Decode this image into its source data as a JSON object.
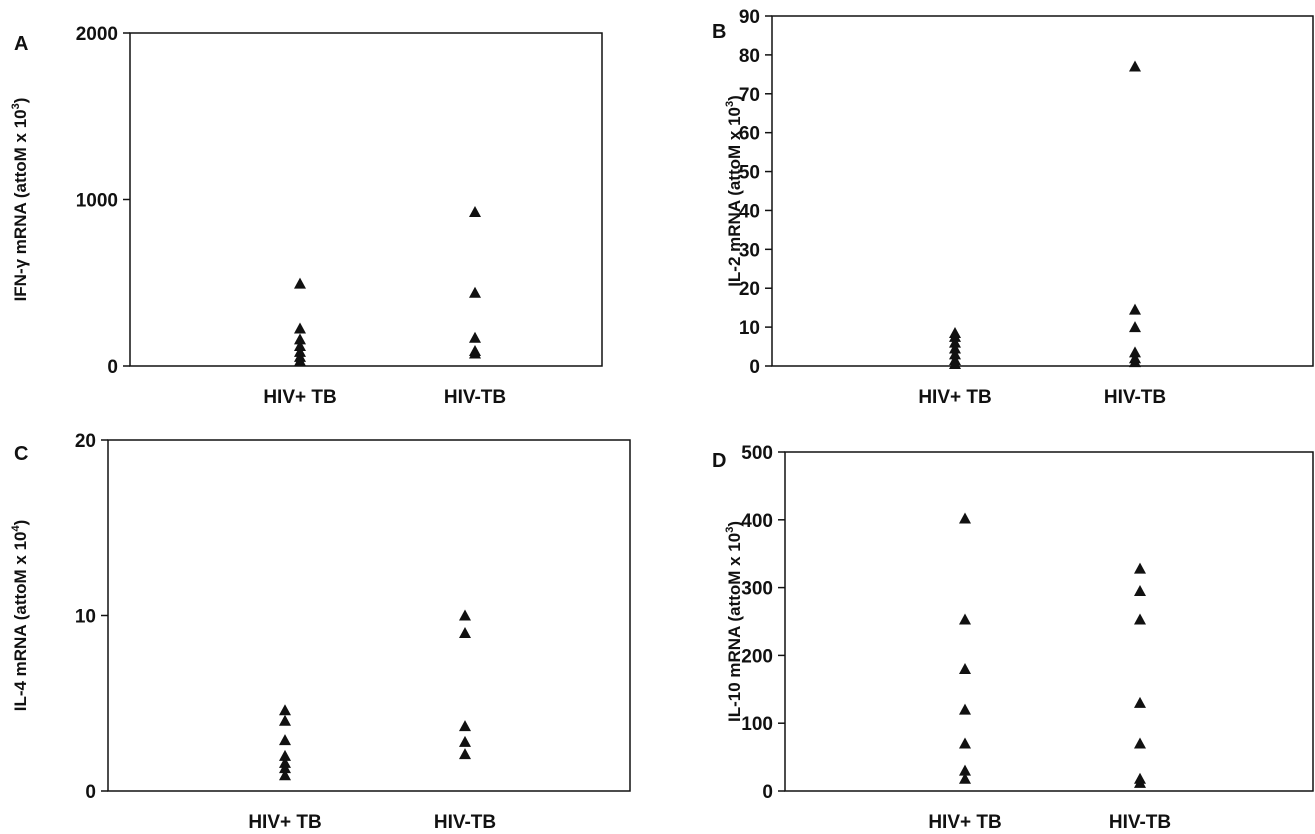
{
  "chart_data": [
    {
      "type": "scatter",
      "panel": "A",
      "ylabel": "IFN-γ mRNA (attoM x 10",
      "ylabel_sup": "3",
      "ylabel_suffix": ")",
      "ylim": [
        0,
        2000
      ],
      "yticks": [
        0,
        1000,
        2000
      ],
      "ytick_labels": [
        "0",
        "1000",
        "2000"
      ],
      "categories": [
        "HIV+ TB",
        "HIV-TB"
      ],
      "points": [
        {
          "x": "HIV+ TB",
          "y": 495
        },
        {
          "x": "HIV+ TB",
          "y": 225
        },
        {
          "x": "HIV+ TB",
          "y": 160
        },
        {
          "x": "HIV+ TB",
          "y": 120
        },
        {
          "x": "HIV+ TB",
          "y": 85
        },
        {
          "x": "HIV+ TB",
          "y": 55
        },
        {
          "x": "HIV+ TB",
          "y": 30
        },
        {
          "x": "HIV-TB",
          "y": 925
        },
        {
          "x": "HIV-TB",
          "y": 440
        },
        {
          "x": "HIV-TB",
          "y": 170
        },
        {
          "x": "HIV-TB",
          "y": 90
        },
        {
          "x": "HIV-TB",
          "y": 75
        }
      ],
      "marker": "triangle",
      "color": "#111111",
      "grid": false
    },
    {
      "type": "scatter",
      "panel": "B",
      "ylabel": "IL-2 mRNA (attoM x 10",
      "ylabel_sup": "3",
      "ylabel_suffix": ")",
      "ylim": [
        0,
        90
      ],
      "yticks": [
        0,
        10,
        20,
        30,
        40,
        50,
        60,
        70,
        80,
        90
      ],
      "ytick_labels": [
        "0",
        "10",
        "20",
        "30",
        "40",
        "50",
        "60",
        "70",
        "80",
        "90"
      ],
      "categories": [
        "HIV+ TB",
        "HIV-TB"
      ],
      "points": [
        {
          "x": "HIV+ TB",
          "y": 8.5
        },
        {
          "x": "HIV+ TB",
          "y": 7.5
        },
        {
          "x": "HIV+ TB",
          "y": 6.0
        },
        {
          "x": "HIV+ TB",
          "y": 4.5
        },
        {
          "x": "HIV+ TB",
          "y": 3.0
        },
        {
          "x": "HIV+ TB",
          "y": 1.5
        },
        {
          "x": "HIV+ TB",
          "y": 0.5
        },
        {
          "x": "HIV-TB",
          "y": 77
        },
        {
          "x": "HIV-TB",
          "y": 14.5
        },
        {
          "x": "HIV-TB",
          "y": 10
        },
        {
          "x": "HIV-TB",
          "y": 3.5
        },
        {
          "x": "HIV-TB",
          "y": 2.0
        },
        {
          "x": "HIV-TB",
          "y": 1.0
        }
      ],
      "marker": "triangle",
      "color": "#111111",
      "grid": false
    },
    {
      "type": "scatter",
      "panel": "C",
      "ylabel": "IL-4 mRNA (attoM x 10",
      "ylabel_sup": "4",
      "ylabel_suffix": ")",
      "ylim": [
        0,
        20
      ],
      "yticks": [
        0,
        10,
        20
      ],
      "ytick_labels": [
        "0",
        "10",
        "20"
      ],
      "categories": [
        "HIV+ TB",
        "HIV-TB"
      ],
      "points": [
        {
          "x": "HIV+ TB",
          "y": 4.6
        },
        {
          "x": "HIV+ TB",
          "y": 4.0
        },
        {
          "x": "HIV+ TB",
          "y": 2.9
        },
        {
          "x": "HIV+ TB",
          "y": 2.0
        },
        {
          "x": "HIV+ TB",
          "y": 1.6
        },
        {
          "x": "HIV+ TB",
          "y": 1.3
        },
        {
          "x": "HIV+ TB",
          "y": 0.9
        },
        {
          "x": "HIV-TB",
          "y": 10.0
        },
        {
          "x": "HIV-TB",
          "y": 9.0
        },
        {
          "x": "HIV-TB",
          "y": 3.7
        },
        {
          "x": "HIV-TB",
          "y": 2.8
        },
        {
          "x": "HIV-TB",
          "y": 2.1
        }
      ],
      "marker": "triangle",
      "color": "#111111",
      "grid": false
    },
    {
      "type": "scatter",
      "panel": "D",
      "ylabel": "IL-10 mRNA (attoM x 10",
      "ylabel_sup": "3",
      "ylabel_suffix": ")",
      "ylim": [
        0,
        500
      ],
      "yticks": [
        0,
        100,
        200,
        300,
        400,
        500
      ],
      "ytick_labels": [
        "0",
        "100",
        "200",
        "300",
        "400",
        "500"
      ],
      "categories": [
        "HIV+ TB",
        "HIV-TB"
      ],
      "points": [
        {
          "x": "HIV+ TB",
          "y": 402
        },
        {
          "x": "HIV+ TB",
          "y": 253
        },
        {
          "x": "HIV+ TB",
          "y": 180
        },
        {
          "x": "HIV+ TB",
          "y": 120
        },
        {
          "x": "HIV+ TB",
          "y": 70
        },
        {
          "x": "HIV+ TB",
          "y": 30
        },
        {
          "x": "HIV+ TB",
          "y": 18
        },
        {
          "x": "HIV-TB",
          "y": 328
        },
        {
          "x": "HIV-TB",
          "y": 295
        },
        {
          "x": "HIV-TB",
          "y": 253
        },
        {
          "x": "HIV-TB",
          "y": 130
        },
        {
          "x": "HIV-TB",
          "y": 70
        },
        {
          "x": "HIV-TB",
          "y": 18
        },
        {
          "x": "HIV-TB",
          "y": 12
        }
      ],
      "marker": "triangle",
      "color": "#111111",
      "grid": false
    }
  ]
}
